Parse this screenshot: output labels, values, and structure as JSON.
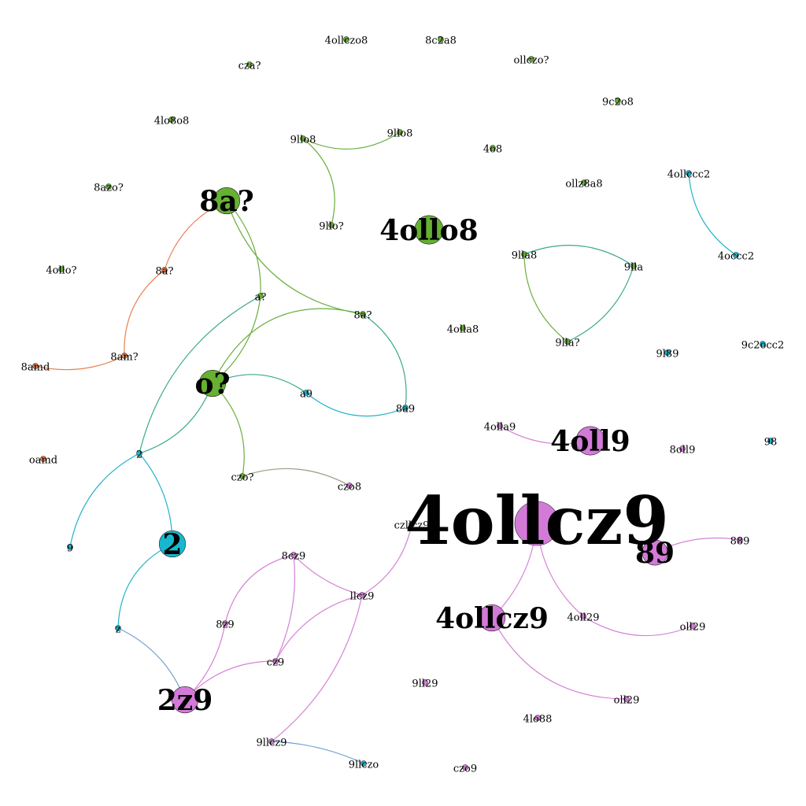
{
  "colors": {
    "green": "#66b032",
    "orange": "#f07845",
    "cyan": "#17b8cf",
    "pink": "#d37ad8",
    "green_edge": "#6aae3e",
    "orange_edge": "#e9804f",
    "cyan_edge": "#1fb4c8",
    "pink_edge": "#d482d6",
    "teal_edge": "#3aa88e",
    "grey_edge": "#9a9a88",
    "blue_edge": "#6f9fd2"
  },
  "nodes": [
    {
      "id": "n1",
      "label": "4ollcz9",
      "color": "pink",
      "size": 3.0
    },
    {
      "id": "n2",
      "label": "4ollo8",
      "color": "green",
      "size": 1.6
    },
    {
      "id": "n3",
      "label": "4oll9",
      "color": "pink",
      "size": 1.6
    },
    {
      "id": "n4",
      "label": "4ollcz9",
      "color": "pink",
      "size": 1.4
    },
    {
      "id": "n5",
      "label": "89",
      "color": "pink",
      "size": 1.3
    },
    {
      "id": "n6",
      "label": "8a?",
      "color": "green",
      "size": 1.4
    },
    {
      "id": "n7",
      "label": "o?",
      "color": "green",
      "size": 1.4
    },
    {
      "id": "n8",
      "label": "2",
      "color": "cyan",
      "size": 1.4
    },
    {
      "id": "n9",
      "label": "2z9",
      "color": "pink",
      "size": 1.4
    },
    {
      "id": "n10",
      "label": "4ollczo8",
      "color": "green",
      "size": 0.5
    },
    {
      "id": "n11",
      "label": "8c2a8",
      "color": "green",
      "size": 0.5
    },
    {
      "id": "n12",
      "label": "ollczo?",
      "color": "green",
      "size": 0.5
    },
    {
      "id": "n13",
      "label": "cza?",
      "color": "green",
      "size": 0.5
    },
    {
      "id": "n14",
      "label": "9c2o8",
      "color": "green",
      "size": 0.5
    },
    {
      "id": "n15",
      "label": "4lo8o8",
      "color": "green",
      "size": 0.5
    },
    {
      "id": "n16",
      "label": "9llo8",
      "color": "green",
      "size": 0.5
    },
    {
      "id": "n17",
      "label": "9llo8",
      "color": "green",
      "size": 0.5
    },
    {
      "id": "n18",
      "label": "4o8",
      "color": "green",
      "size": 0.5
    },
    {
      "id": "n19",
      "label": "8azo?",
      "color": "green",
      "size": 0.5
    },
    {
      "id": "n20",
      "label": "ollz8a8",
      "color": "green",
      "size": 0.5
    },
    {
      "id": "n21",
      "label": "4ollccc2",
      "color": "cyan",
      "size": 0.5
    },
    {
      "id": "n22",
      "label": "9llo?",
      "color": "green",
      "size": 0.5
    },
    {
      "id": "n23",
      "label": "4ollo?",
      "color": "green",
      "size": 0.5
    },
    {
      "id": "n24",
      "label": "8a?",
      "color": "orange",
      "size": 0.5
    },
    {
      "id": "n25",
      "label": "9lla8",
      "color": "green",
      "size": 0.5
    },
    {
      "id": "n26",
      "label": "9lla",
      "color": "green",
      "size": 0.5
    },
    {
      "id": "n27",
      "label": "4occc2",
      "color": "cyan",
      "size": 0.5
    },
    {
      "id": "n28",
      "label": "a?",
      "color": "green",
      "size": 0.5
    },
    {
      "id": "n29",
      "label": "8a?",
      "color": "green",
      "size": 0.5
    },
    {
      "id": "n30",
      "label": "4olla8",
      "color": "green",
      "size": 0.5
    },
    {
      "id": "n31",
      "label": "9lla?",
      "color": "green",
      "size": 0.5
    },
    {
      "id": "n32",
      "label": "9l89",
      "color": "cyan",
      "size": 0.5
    },
    {
      "id": "n33",
      "label": "9c2occ2",
      "color": "cyan",
      "size": 0.5
    },
    {
      "id": "n34",
      "label": "8amd",
      "color": "orange",
      "size": 0.5
    },
    {
      "id": "n35",
      "label": "8am?",
      "color": "orange",
      "size": 0.5
    },
    {
      "id": "n36",
      "label": "a9",
      "color": "cyan",
      "size": 0.5
    },
    {
      "id": "n37",
      "label": "8a9",
      "color": "cyan",
      "size": 0.5
    },
    {
      "id": "n38",
      "label": "4olla9",
      "color": "pink",
      "size": 0.5
    },
    {
      "id": "n39",
      "label": "8oll9",
      "color": "pink",
      "size": 0.5
    },
    {
      "id": "n40",
      "label": "98",
      "color": "cyan",
      "size": 0.5
    },
    {
      "id": "n41",
      "label": "oamd",
      "color": "orange",
      "size": 0.5
    },
    {
      "id": "n42",
      "label": "2",
      "color": "cyan",
      "size": 0.5
    },
    {
      "id": "n43",
      "label": "czo?",
      "color": "green",
      "size": 0.5
    },
    {
      "id": "n44",
      "label": "czo8",
      "color": "pink",
      "size": 0.5
    },
    {
      "id": "n45",
      "label": "czllcz9",
      "color": "pink",
      "size": 0.5
    },
    {
      "id": "n46",
      "label": "9",
      "color": "cyan",
      "size": 0.5
    },
    {
      "id": "n47",
      "label": "8cz9",
      "color": "pink",
      "size": 0.5
    },
    {
      "id": "n48",
      "label": "889",
      "color": "pink",
      "size": 0.5
    },
    {
      "id": "n49",
      "label": "llcz9",
      "color": "pink",
      "size": 0.5
    },
    {
      "id": "n50",
      "label": "z",
      "color": "cyan",
      "size": 0.5
    },
    {
      "id": "n51",
      "label": "8z9",
      "color": "pink",
      "size": 0.5
    },
    {
      "id": "n52",
      "label": "4oll29",
      "color": "pink",
      "size": 0.5
    },
    {
      "id": "n53",
      "label": "oll29",
      "color": "pink",
      "size": 0.5
    },
    {
      "id": "n54",
      "label": "cz9",
      "color": "pink",
      "size": 0.5
    },
    {
      "id": "n55",
      "label": "9ll29",
      "color": "pink",
      "size": 0.5
    },
    {
      "id": "n56",
      "label": "oll29",
      "color": "pink",
      "size": 0.5
    },
    {
      "id": "n57",
      "label": "4lo88",
      "color": "pink",
      "size": 0.5
    },
    {
      "id": "n58",
      "label": "9llcz9",
      "color": "pink",
      "size": 0.5
    },
    {
      "id": "n59",
      "label": "9llczo",
      "color": "cyan",
      "size": 0.5
    },
    {
      "id": "n60",
      "label": "czo9",
      "color": "pink",
      "size": 0.5
    }
  ],
  "edges": [
    {
      "source": "n16",
      "target": "n17",
      "color": "green_edge"
    },
    {
      "source": "n16",
      "target": "n22",
      "color": "green_edge"
    },
    {
      "source": "n6",
      "target": "n24",
      "color": "orange_edge"
    },
    {
      "source": "n24",
      "target": "n35",
      "color": "orange_edge"
    },
    {
      "source": "n35",
      "target": "n34",
      "color": "orange_edge"
    },
    {
      "source": "n6",
      "target": "n28",
      "color": "green_edge"
    },
    {
      "source": "n6",
      "target": "n29",
      "color": "green_edge"
    },
    {
      "source": "n28",
      "target": "n7",
      "color": "green_edge"
    },
    {
      "source": "n28",
      "target": "n42",
      "color": "teal_edge"
    },
    {
      "source": "n29",
      "target": "n7",
      "color": "green_edge"
    },
    {
      "source": "n29",
      "target": "n37",
      "color": "teal_edge"
    },
    {
      "source": "n7",
      "target": "n36",
      "color": "teal_edge"
    },
    {
      "source": "n36",
      "target": "n37",
      "color": "cyan_edge"
    },
    {
      "source": "n7",
      "target": "n42",
      "color": "teal_edge"
    },
    {
      "source": "n7",
      "target": "n43",
      "color": "green_edge"
    },
    {
      "source": "n43",
      "target": "n44",
      "color": "grey_edge"
    },
    {
      "source": "n42",
      "target": "n46",
      "color": "cyan_edge"
    },
    {
      "source": "n42",
      "target": "n8",
      "color": "cyan_edge"
    },
    {
      "source": "n8",
      "target": "n50",
      "color": "cyan_edge"
    },
    {
      "source": "n50",
      "target": "n9",
      "color": "blue_edge"
    },
    {
      "source": "n25",
      "target": "n26",
      "color": "teal_edge"
    },
    {
      "source": "n25",
      "target": "n31",
      "color": "green_edge"
    },
    {
      "source": "n26",
      "target": "n31",
      "color": "teal_edge"
    },
    {
      "source": "n21",
      "target": "n27",
      "color": "cyan_edge"
    },
    {
      "source": "n38",
      "target": "n3",
      "color": "pink_edge"
    },
    {
      "source": "n1",
      "target": "n4",
      "color": "pink_edge"
    },
    {
      "source": "n1",
      "target": "n52",
      "color": "pink_edge"
    },
    {
      "source": "n52",
      "target": "n53",
      "color": "pink_edge"
    },
    {
      "source": "n5",
      "target": "n48",
      "color": "pink_edge"
    },
    {
      "source": "n4",
      "target": "n56",
      "color": "pink_edge"
    },
    {
      "source": "n45",
      "target": "n49",
      "color": "pink_edge"
    },
    {
      "source": "n47",
      "target": "n49",
      "color": "pink_edge"
    },
    {
      "source": "n47",
      "target": "n54",
      "color": "pink_edge"
    },
    {
      "source": "n47",
      "target": "n51",
      "color": "pink_edge"
    },
    {
      "source": "n49",
      "target": "n54",
      "color": "pink_edge"
    },
    {
      "source": "n49",
      "target": "n58",
      "color": "pink_edge"
    },
    {
      "source": "n51",
      "target": "n9",
      "color": "pink_edge"
    },
    {
      "source": "n54",
      "target": "n9",
      "color": "pink_edge"
    },
    {
      "source": "n58",
      "target": "n59",
      "color": "blue_edge"
    }
  ]
}
